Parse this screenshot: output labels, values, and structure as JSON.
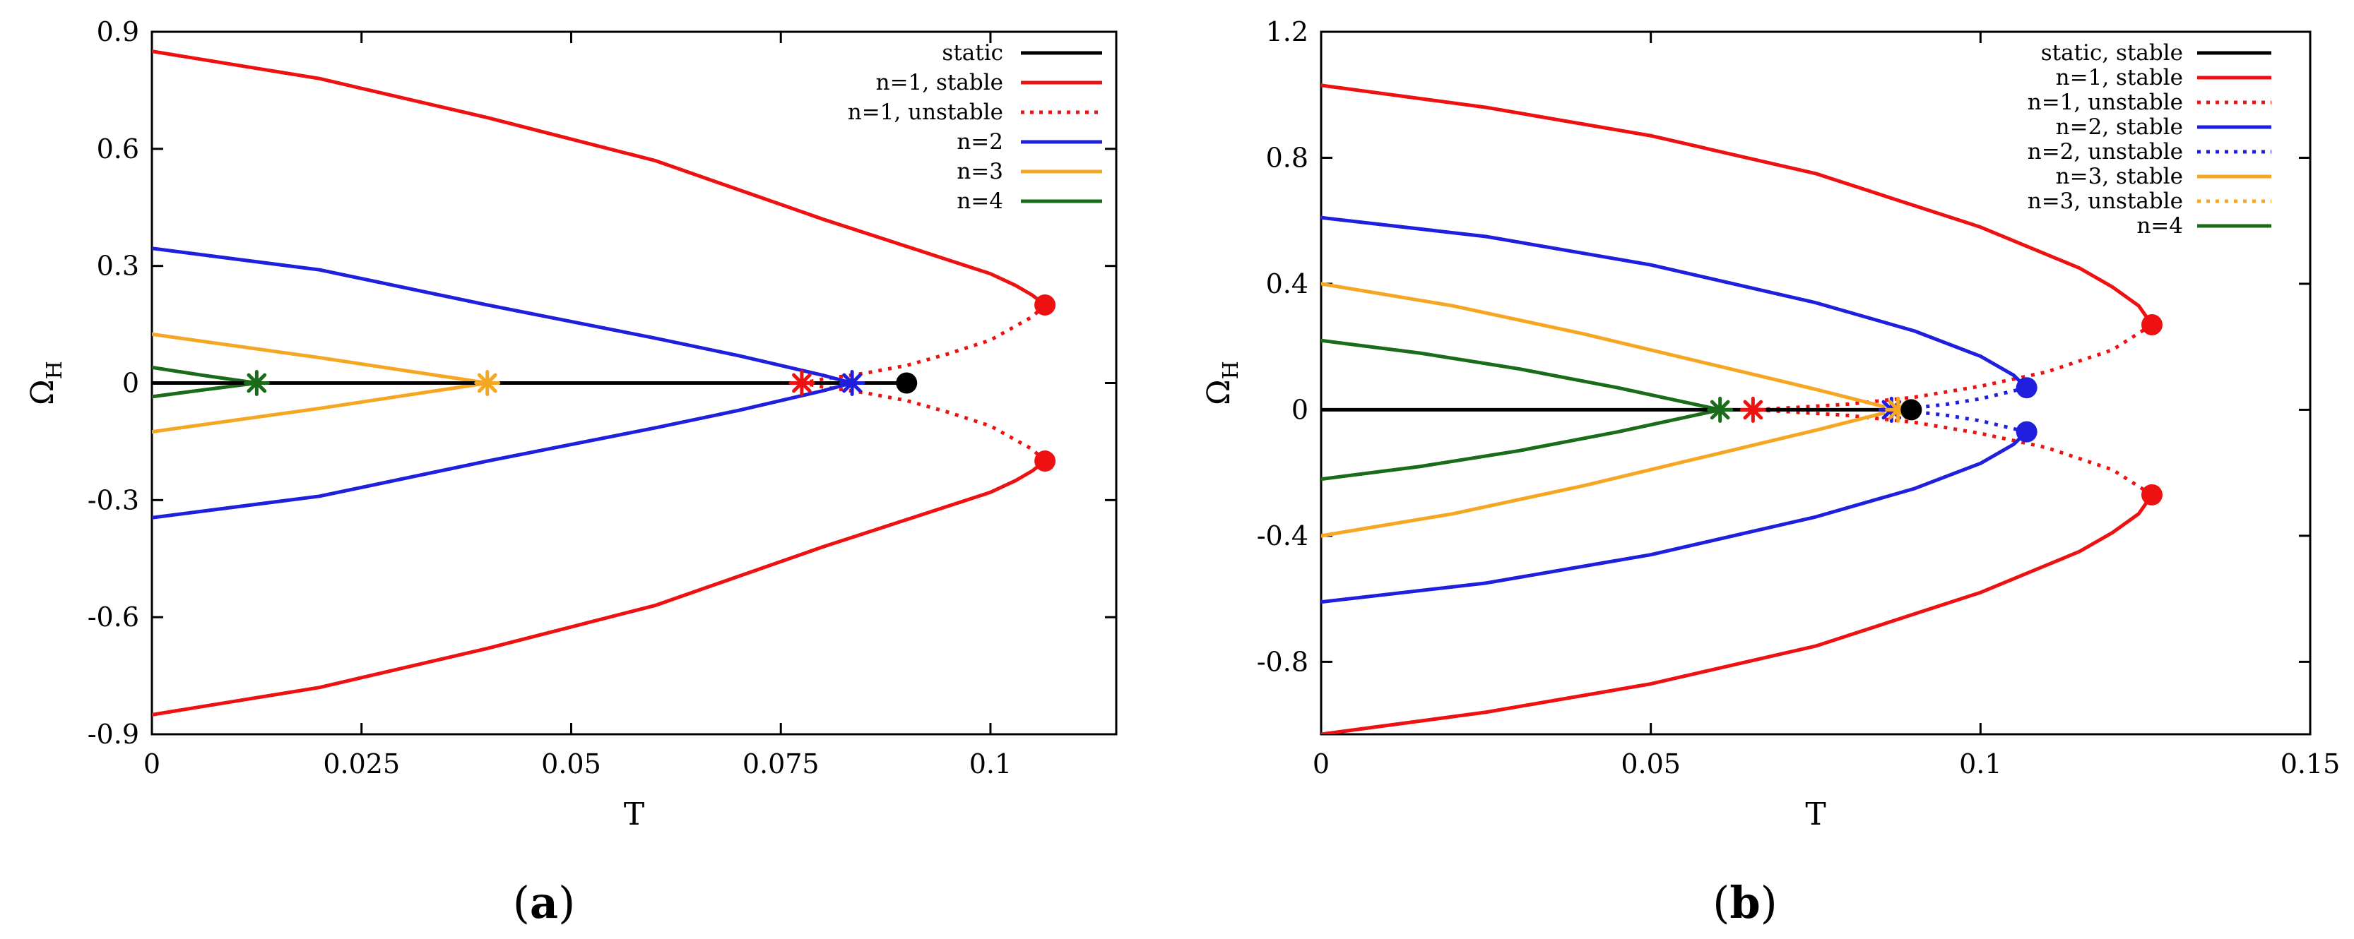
{
  "chart_data": [
    {
      "type": "line",
      "panel_caption": [
        "(",
        "a",
        ")"
      ],
      "xlabel": "T",
      "ylabel": "Ω",
      "ylabel_subscript": "H",
      "xlim": [
        0,
        0.115
      ],
      "ylim": [
        -0.9,
        0.9
      ],
      "x_ticks": [
        0,
        0.025,
        0.05,
        0.075,
        0.1
      ],
      "x_tick_labels": [
        "0",
        "0.025",
        "0.05",
        "0.075",
        "0.1"
      ],
      "y_ticks": [
        -0.9,
        -0.6,
        -0.3,
        0,
        0.3,
        0.6,
        0.9
      ],
      "y_tick_labels": [
        "-0.9",
        "-0.6",
        "-0.3",
        "0",
        "0.3",
        "0.6",
        "0.9"
      ],
      "legend_position": "top-right",
      "legend": [
        {
          "label": "static",
          "color": "#000000",
          "dash": "solid"
        },
        {
          "label": "n=1, stable",
          "color": "#ee1111",
          "dash": "solid"
        },
        {
          "label": "n=1, unstable",
          "color": "#ee1111",
          "dash": "dotted"
        },
        {
          "label": "n=2",
          "color": "#1f1fdd",
          "dash": "solid"
        },
        {
          "label": "n=3",
          "color": "#f5a623",
          "dash": "solid"
        },
        {
          "label": "n=4",
          "color": "#1a6b1a",
          "dash": "solid"
        }
      ],
      "series": [
        {
          "name": "n=1 upper stable",
          "color": "#ee1111",
          "dash": "solid",
          "x": [
            0,
            0.02,
            0.04,
            0.06,
            0.08,
            0.09,
            0.1,
            0.103,
            0.105,
            0.1065
          ],
          "y": [
            0.85,
            0.78,
            0.68,
            0.57,
            0.42,
            0.35,
            0.28,
            0.25,
            0.225,
            0.2
          ]
        },
        {
          "name": "n=1 lower stable",
          "color": "#ee1111",
          "dash": "solid",
          "x": [
            0,
            0.02,
            0.04,
            0.06,
            0.08,
            0.09,
            0.1,
            0.103,
            0.105,
            0.1065
          ],
          "y": [
            -0.85,
            -0.78,
            -0.68,
            -0.57,
            -0.42,
            -0.35,
            -0.28,
            -0.25,
            -0.225,
            -0.2
          ]
        },
        {
          "name": "n=1 upper unstable",
          "color": "#ee1111",
          "dash": "dotted",
          "x": [
            0.1065,
            0.105,
            0.1,
            0.095,
            0.09,
            0.085,
            0.08,
            0.0775
          ],
          "y": [
            0.2,
            0.17,
            0.11,
            0.075,
            0.045,
            0.025,
            0.01,
            0.0
          ]
        },
        {
          "name": "n=1 lower unstable",
          "color": "#ee1111",
          "dash": "dotted",
          "x": [
            0.1065,
            0.105,
            0.1,
            0.095,
            0.09,
            0.085,
            0.08,
            0.0775
          ],
          "y": [
            -0.2,
            -0.17,
            -0.11,
            -0.075,
            -0.045,
            -0.025,
            -0.01,
            0.0
          ]
        },
        {
          "name": "n=2 upper",
          "color": "#1f1fdd",
          "dash": "solid",
          "x": [
            0,
            0.02,
            0.04,
            0.06,
            0.07,
            0.08,
            0.0835
          ],
          "y": [
            0.345,
            0.29,
            0.2,
            0.115,
            0.07,
            0.02,
            0.0
          ]
        },
        {
          "name": "n=2 lower",
          "color": "#1f1fdd",
          "dash": "solid",
          "x": [
            0,
            0.02,
            0.04,
            0.06,
            0.07,
            0.08,
            0.0835
          ],
          "y": [
            -0.345,
            -0.29,
            -0.2,
            -0.115,
            -0.07,
            -0.02,
            0.0
          ]
        },
        {
          "name": "n=3 upper",
          "color": "#f5a623",
          "dash": "solid",
          "x": [
            0,
            0.02,
            0.04
          ],
          "y": [
            0.125,
            0.065,
            0.0
          ]
        },
        {
          "name": "n=3 lower",
          "color": "#f5a623",
          "dash": "solid",
          "x": [
            0,
            0.02,
            0.04
          ],
          "y": [
            -0.125,
            -0.065,
            0.0
          ]
        },
        {
          "name": "n=4 upper",
          "color": "#1a6b1a",
          "dash": "solid",
          "x": [
            0,
            0.006,
            0.0125
          ],
          "y": [
            0.04,
            0.02,
            0.0
          ]
        },
        {
          "name": "n=4 lower",
          "color": "#1a6b1a",
          "dash": "solid",
          "x": [
            0,
            0.006,
            0.0125
          ],
          "y": [
            -0.035,
            -0.018,
            0.0
          ]
        },
        {
          "name": "static",
          "color": "#000000",
          "dash": "solid",
          "x": [
            0,
            0.09
          ],
          "y": [
            0,
            0
          ]
        }
      ],
      "markers": [
        {
          "name": "n4-bifurcation",
          "type": "star",
          "color": "#1a6b1a",
          "x": 0.0125,
          "y": 0
        },
        {
          "name": "n3-bifurcation",
          "type": "star",
          "color": "#f5a623",
          "x": 0.04,
          "y": 0
        },
        {
          "name": "n1-bifurcation",
          "type": "star",
          "color": "#ee1111",
          "x": 0.0775,
          "y": 0
        },
        {
          "name": "n2-bifurcation",
          "type": "star",
          "color": "#1f1fdd",
          "x": 0.0835,
          "y": 0
        },
        {
          "name": "static-endpoint",
          "type": "dot",
          "color": "#000000",
          "x": 0.09,
          "y": 0
        },
        {
          "name": "n1-turning-upper",
          "type": "dot",
          "color": "#ee1111",
          "x": 0.1065,
          "y": 0.2
        },
        {
          "name": "n1-turning-lower",
          "type": "dot",
          "color": "#ee1111",
          "x": 0.1065,
          "y": -0.2
        }
      ]
    },
    {
      "type": "line",
      "panel_caption": [
        "(",
        "b",
        ")"
      ],
      "xlabel": "T",
      "ylabel": "Ω",
      "ylabel_subscript": "H",
      "xlim": [
        0,
        0.15
      ],
      "ylim": [
        -1.03,
        1.2
      ],
      "x_ticks": [
        0,
        0.05,
        0.1,
        0.15
      ],
      "x_tick_labels": [
        "0",
        "0.05",
        "0.1",
        "0.15"
      ],
      "y_ticks": [
        -0.8,
        -0.4,
        0,
        0.4,
        0.8,
        1.2
      ],
      "y_tick_labels": [
        "-0.8",
        "-0.4",
        "0",
        "0.4",
        "0.8",
        "1.2"
      ],
      "legend_position": "top-right",
      "legend": [
        {
          "label": "static, stable",
          "color": "#000000",
          "dash": "solid"
        },
        {
          "label": "n=1, stable",
          "color": "#ee1111",
          "dash": "solid"
        },
        {
          "label": "n=1, unstable",
          "color": "#ee1111",
          "dash": "dotted"
        },
        {
          "label": "n=2, stable",
          "color": "#1f1fdd",
          "dash": "solid"
        },
        {
          "label": "n=2, unstable",
          "color": "#1f1fdd",
          "dash": "dotted"
        },
        {
          "label": "n=3, stable",
          "color": "#f5a623",
          "dash": "solid"
        },
        {
          "label": "n=3, unstable",
          "color": "#f5a623",
          "dash": "dotted"
        },
        {
          "label": "n=4",
          "color": "#1a6b1a",
          "dash": "solid"
        }
      ],
      "series": [
        {
          "name": "n=1 upper stable",
          "color": "#ee1111",
          "dash": "solid",
          "x": [
            0,
            0.025,
            0.05,
            0.075,
            0.1,
            0.115,
            0.12,
            0.124,
            0.126
          ],
          "y": [
            1.03,
            0.96,
            0.87,
            0.75,
            0.58,
            0.45,
            0.39,
            0.33,
            0.27
          ]
        },
        {
          "name": "n=1 lower stable",
          "color": "#ee1111",
          "dash": "solid",
          "x": [
            0,
            0.025,
            0.05,
            0.075,
            0.1,
            0.115,
            0.12,
            0.124,
            0.126
          ],
          "y": [
            -1.03,
            -0.96,
            -0.87,
            -0.75,
            -0.58,
            -0.45,
            -0.39,
            -0.33,
            -0.27
          ]
        },
        {
          "name": "n=1 upper unstable",
          "color": "#ee1111",
          "dash": "dotted",
          "x": [
            0.126,
            0.12,
            0.11,
            0.1,
            0.09,
            0.08,
            0.07,
            0.0655
          ],
          "y": [
            0.27,
            0.19,
            0.12,
            0.075,
            0.04,
            0.018,
            0.005,
            0.0
          ]
        },
        {
          "name": "n=1 lower unstable",
          "color": "#ee1111",
          "dash": "dotted",
          "x": [
            0.126,
            0.12,
            0.11,
            0.1,
            0.09,
            0.08,
            0.07,
            0.0655
          ],
          "y": [
            -0.27,
            -0.19,
            -0.12,
            -0.075,
            -0.04,
            -0.018,
            -0.005,
            0.0
          ]
        },
        {
          "name": "n=2 upper stable",
          "color": "#1f1fdd",
          "dash": "solid",
          "x": [
            0,
            0.025,
            0.05,
            0.075,
            0.09,
            0.1,
            0.105,
            0.107
          ],
          "y": [
            0.61,
            0.55,
            0.46,
            0.34,
            0.25,
            0.17,
            0.11,
            0.07
          ]
        },
        {
          "name": "n=2 lower stable",
          "color": "#1f1fdd",
          "dash": "solid",
          "x": [
            0,
            0.025,
            0.05,
            0.075,
            0.09,
            0.1,
            0.105,
            0.107
          ],
          "y": [
            -0.61,
            -0.55,
            -0.46,
            -0.34,
            -0.25,
            -0.17,
            -0.11,
            -0.07
          ]
        },
        {
          "name": "n=2 upper unstable",
          "color": "#1f1fdd",
          "dash": "dotted",
          "x": [
            0.107,
            0.1,
            0.095,
            0.09,
            0.087
          ],
          "y": [
            0.07,
            0.035,
            0.018,
            0.006,
            0.0
          ]
        },
        {
          "name": "n=2 lower unstable",
          "color": "#1f1fdd",
          "dash": "dotted",
          "x": [
            0.107,
            0.1,
            0.095,
            0.09,
            0.087
          ],
          "y": [
            -0.07,
            -0.035,
            -0.018,
            -0.006,
            0.0
          ]
        },
        {
          "name": "n=3 upper stable",
          "color": "#f5a623",
          "dash": "solid",
          "x": [
            0,
            0.02,
            0.04,
            0.06,
            0.075,
            0.085
          ],
          "y": [
            0.4,
            0.33,
            0.24,
            0.14,
            0.065,
            0.012
          ]
        },
        {
          "name": "n=3 lower stable",
          "color": "#f5a623",
          "dash": "solid",
          "x": [
            0,
            0.02,
            0.04,
            0.06,
            0.075,
            0.085
          ],
          "y": [
            -0.4,
            -0.33,
            -0.24,
            -0.14,
            -0.065,
            -0.012
          ]
        },
        {
          "name": "n=3 upper unstable",
          "color": "#f5a623",
          "dash": "dotted",
          "x": [
            0.085,
            0.0875
          ],
          "y": [
            0.012,
            0.0
          ]
        },
        {
          "name": "n=3 lower unstable",
          "color": "#f5a623",
          "dash": "dotted",
          "x": [
            0.085,
            0.0875
          ],
          "y": [
            -0.012,
            0.0
          ]
        },
        {
          "name": "n=4 upper",
          "color": "#1a6b1a",
          "dash": "solid",
          "x": [
            0,
            0.015,
            0.03,
            0.045,
            0.055,
            0.0605
          ],
          "y": [
            0.22,
            0.18,
            0.13,
            0.07,
            0.025,
            0.0
          ]
        },
        {
          "name": "n=4 lower",
          "color": "#1a6b1a",
          "dash": "solid",
          "x": [
            0,
            0.015,
            0.03,
            0.045,
            0.055,
            0.0605
          ],
          "y": [
            -0.22,
            -0.18,
            -0.13,
            -0.07,
            -0.025,
            0.0
          ]
        },
        {
          "name": "static",
          "color": "#000000",
          "dash": "solid",
          "x": [
            0,
            0.0895
          ],
          "y": [
            0,
            0
          ]
        }
      ],
      "markers": [
        {
          "name": "n4-bifurcation",
          "type": "star",
          "color": "#1a6b1a",
          "x": 0.0605,
          "y": 0
        },
        {
          "name": "n1-bifurcation",
          "type": "star",
          "color": "#ee1111",
          "x": 0.0655,
          "y": 0
        },
        {
          "name": "n2-bifurcation",
          "type": "star",
          "color": "#1f1fdd",
          "x": 0.0865,
          "y": 0
        },
        {
          "name": "n3-bifurcation",
          "type": "star",
          "color": "#f5a623",
          "x": 0.0875,
          "y": 0
        },
        {
          "name": "static-endpoint",
          "type": "dot",
          "color": "#000000",
          "x": 0.0895,
          "y": 0
        },
        {
          "name": "n2-turning-upper",
          "type": "dot",
          "color": "#1f1fdd",
          "x": 0.107,
          "y": 0.07
        },
        {
          "name": "n2-turning-lower",
          "type": "dot",
          "color": "#1f1fdd",
          "x": 0.107,
          "y": -0.07
        },
        {
          "name": "n1-turning-upper",
          "type": "dot",
          "color": "#ee1111",
          "x": 0.126,
          "y": 0.27
        },
        {
          "name": "n1-turning-lower",
          "type": "dot",
          "color": "#ee1111",
          "x": 0.126,
          "y": -0.27
        }
      ]
    }
  ]
}
